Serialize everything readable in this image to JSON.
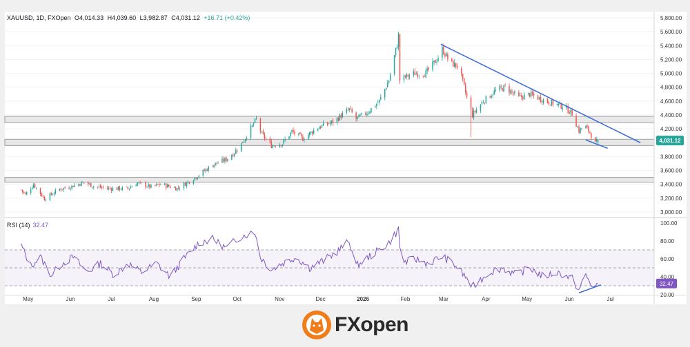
{
  "header": {
    "symbol": "XAUUSD, 1D, FXOpen",
    "open": "O4,014.33",
    "high": "H4,039.60",
    "low": "L3,982.87",
    "close": "C4,031.12",
    "change": "+16.71 (+0.42%)"
  },
  "price_badge": "4,031.12",
  "rsi": {
    "label": "RSI (14)",
    "value": "32.47",
    "badge": "32.47"
  },
  "brand": {
    "name": "FXopen"
  },
  "colors": {
    "up": "#26a69a",
    "down": "#ef5350",
    "trend": "#3d6fd6",
    "rsi": "#7e57c2",
    "zone": "#d6d6d6"
  },
  "chart_data": [
    {
      "type": "candlestick",
      "title": "XAUUSD, 1D, FXOpen",
      "xlabel": "",
      "ylabel": "",
      "x_ticks": [
        "May",
        "Jun",
        "Jul",
        "Aug",
        "Sep",
        "Oct",
        "Nov",
        "Dec",
        "2026",
        "Feb",
        "Mar",
        "Apr",
        "May",
        "Jun",
        "Jul"
      ],
      "y_ticks": [
        "3,000.00",
        "3,200.00",
        "3,400.00",
        "3,600.00",
        "3,800.00",
        "4,000.00",
        "4,200.00",
        "4,400.00",
        "4,600.00",
        "4,800.00",
        "5,000.00",
        "5,200.00",
        "5,400.00",
        "5,600.00",
        "5,800.00"
      ],
      "ylim": [
        2950,
        5830
      ],
      "close_path": [
        [
          "2025-04-28",
          3320
        ],
        [
          "2025-05-01",
          3250
        ],
        [
          "2025-05-07",
          3400
        ],
        [
          "2025-05-15",
          3190
        ],
        [
          "2025-05-26",
          3330
        ],
        [
          "2025-06-02",
          3360
        ],
        [
          "2025-06-13",
          3430
        ],
        [
          "2025-06-20",
          3370
        ],
        [
          "2025-07-01",
          3340
        ],
        [
          "2025-07-15",
          3340
        ],
        [
          "2025-07-22",
          3420
        ],
        [
          "2025-08-01",
          3360
        ],
        [
          "2025-08-08",
          3400
        ],
        [
          "2025-08-20",
          3340
        ],
        [
          "2025-09-01",
          3480
        ],
        [
          "2025-09-15",
          3680
        ],
        [
          "2025-09-25",
          3760
        ],
        [
          "2025-10-01",
          3860
        ],
        [
          "2025-10-08",
          4040
        ],
        [
          "2025-10-17",
          4340
        ],
        [
          "2025-10-21",
          4120
        ],
        [
          "2025-10-28",
          3960
        ],
        [
          "2025-11-05",
          3990
        ],
        [
          "2025-11-12",
          4160
        ],
        [
          "2025-11-20",
          4060
        ],
        [
          "2025-12-01",
          4220
        ],
        [
          "2025-12-12",
          4300
        ],
        [
          "2025-12-24",
          4480
        ],
        [
          "2025-12-29",
          4340
        ],
        [
          "2026-01-07",
          4450
        ],
        [
          "2026-01-15",
          4600
        ],
        [
          "2026-01-22",
          4900
        ],
        [
          "2026-01-28",
          5420
        ],
        [
          "2026-01-29",
          5550
        ],
        [
          "2026-01-30",
          4900
        ],
        [
          "2026-02-03",
          4950
        ],
        [
          "2026-02-10",
          5000
        ],
        [
          "2026-02-18",
          5000
        ],
        [
          "2026-02-26",
          5200
        ],
        [
          "2026-03-02",
          5350
        ],
        [
          "2026-03-08",
          5150
        ],
        [
          "2026-03-14",
          5100
        ],
        [
          "2026-03-20",
          4650
        ],
        [
          "2026-03-24",
          4400
        ],
        [
          "2026-04-01",
          4600
        ],
        [
          "2026-04-10",
          4750
        ],
        [
          "2026-04-17",
          4800
        ],
        [
          "2026-04-27",
          4650
        ],
        [
          "2026-05-05",
          4700
        ],
        [
          "2026-05-12",
          4640
        ],
        [
          "2026-05-20",
          4580
        ],
        [
          "2026-05-30",
          4520
        ],
        [
          "2026-06-05",
          4420
        ],
        [
          "2026-06-10",
          4170
        ],
        [
          "2026-06-14",
          4250
        ],
        [
          "2026-06-18",
          4150
        ],
        [
          "2026-06-22",
          3990
        ],
        [
          "2026-06-24",
          4031.12
        ]
      ],
      "highlights": [
        [
          "2026-01-29",
          "high",
          5600
        ],
        [
          "2026-03-22",
          "low",
          4080
        ]
      ],
      "zones": [
        [
          4290,
          4380
        ],
        [
          3960,
          4050
        ],
        [
          3430,
          3500
        ]
      ],
      "trendlines": [
        [
          [
            "2026-03-01",
            5420
          ],
          [
            "2026-07-25",
            4000
          ]
        ],
        [
          [
            "2026-06-15",
            4040
          ],
          [
            "2026-07-01",
            3920
          ]
        ]
      ],
      "last": 4031.12
    },
    {
      "type": "line",
      "title": "RSI (14)",
      "y_ticks": [
        "20.00",
        "40.00",
        "60.00",
        "80.00",
        "100.00"
      ],
      "ylim": [
        20,
        100
      ],
      "bands": [
        30,
        50,
        70
      ],
      "series": [
        {
          "name": "RSI (14)",
          "values": [
            [
              "2025-04-28",
              75
            ],
            [
              "2025-05-05",
              52
            ],
            [
              "2025-05-12",
              62
            ],
            [
              "2025-05-20",
              42
            ],
            [
              "2025-05-28",
              55
            ],
            [
              "2025-06-05",
              62
            ],
            [
              "2025-06-15",
              45
            ],
            [
              "2025-06-25",
              55
            ],
            [
              "2025-07-05",
              42
            ],
            [
              "2025-07-15",
              55
            ],
            [
              "2025-07-25",
              45
            ],
            [
              "2025-08-05",
              55
            ],
            [
              "2025-08-15",
              40
            ],
            [
              "2025-08-25",
              60
            ],
            [
              "2025-09-05",
              78
            ],
            [
              "2025-09-15",
              82
            ],
            [
              "2025-09-25",
              72
            ],
            [
              "2025-10-05",
              85
            ],
            [
              "2025-10-16",
              90
            ],
            [
              "2025-10-20",
              62
            ],
            [
              "2025-10-28",
              48
            ],
            [
              "2025-11-05",
              55
            ],
            [
              "2025-11-15",
              62
            ],
            [
              "2025-11-25",
              50
            ],
            [
              "2025-12-05",
              58
            ],
            [
              "2025-12-15",
              68
            ],
            [
              "2025-12-24",
              80
            ],
            [
              "2025-12-29",
              52
            ],
            [
              "2026-01-07",
              62
            ],
            [
              "2026-01-15",
              70
            ],
            [
              "2026-01-22",
              78
            ],
            [
              "2026-01-29",
              93
            ],
            [
              "2026-01-31",
              55
            ],
            [
              "2026-02-10",
              60
            ],
            [
              "2026-02-20",
              55
            ],
            [
              "2026-03-02",
              63
            ],
            [
              "2026-03-12",
              52
            ],
            [
              "2026-03-20",
              38
            ],
            [
              "2026-03-24",
              28
            ],
            [
              "2026-04-05",
              45
            ],
            [
              "2026-04-15",
              50
            ],
            [
              "2026-04-25",
              42
            ],
            [
              "2026-05-05",
              50
            ],
            [
              "2026-05-15",
              40
            ],
            [
              "2026-05-25",
              45
            ],
            [
              "2026-06-05",
              38
            ],
            [
              "2026-06-10",
              25
            ],
            [
              "2026-06-15",
              42
            ],
            [
              "2026-06-19",
              30
            ],
            [
              "2026-06-24",
              32.47
            ]
          ]
        }
      ],
      "trendlines": [
        [
          [
            "2026-06-10",
            22
          ],
          [
            "2026-06-26",
            31
          ]
        ]
      ],
      "last": 32.47
    }
  ]
}
